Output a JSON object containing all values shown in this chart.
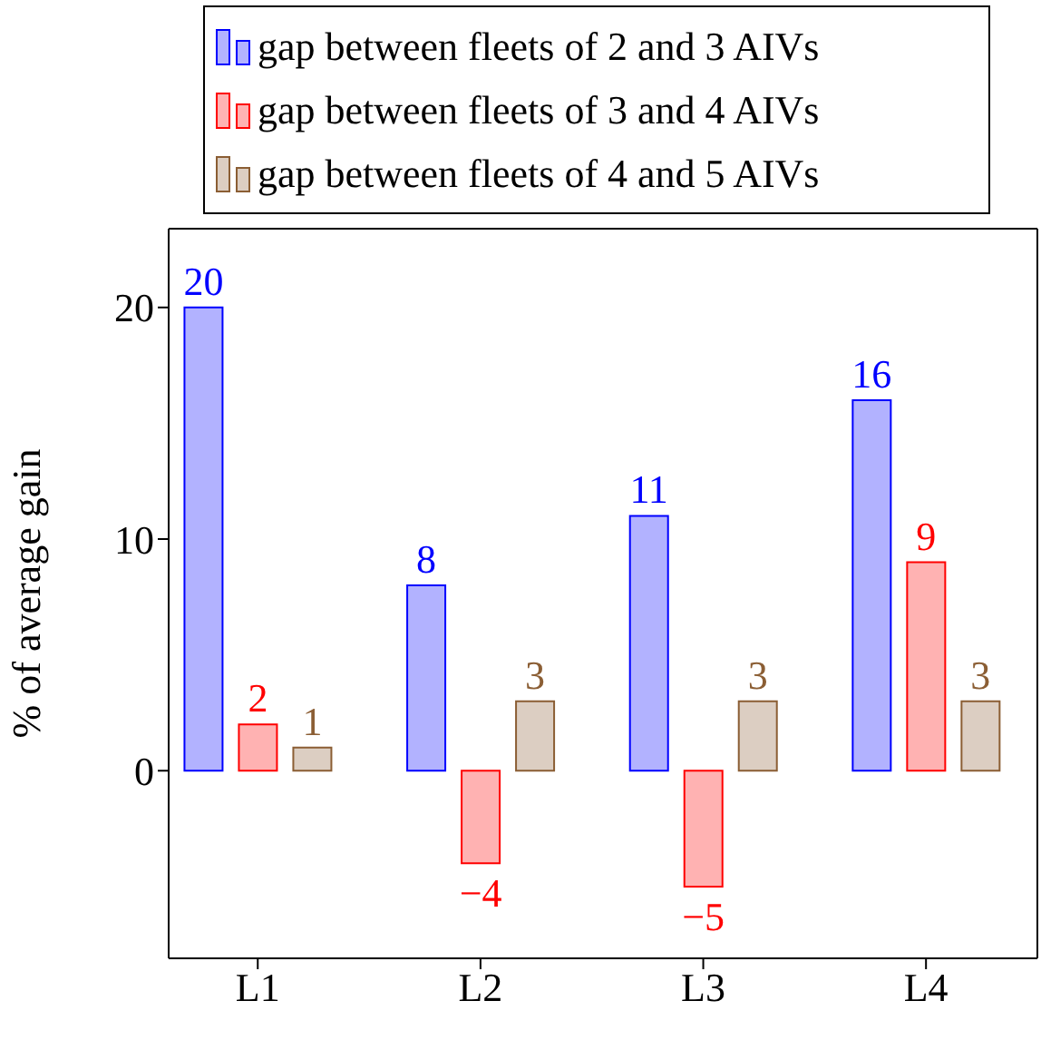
{
  "chart_data": {
    "type": "bar",
    "ylabel": "% of average gain",
    "categories": [
      "L1",
      "L2",
      "L3",
      "L4"
    ],
    "series": [
      {
        "name": "gap between fleets of 2 and 3 AIVs",
        "color": "#0000ff",
        "values": [
          20,
          8,
          11,
          16
        ]
      },
      {
        "name": "gap between fleets of 3 and 4 AIVs",
        "color": "#ff0000",
        "values": [
          2,
          -4,
          -5,
          9
        ]
      },
      {
        "name": "gap between fleets of 4 and 5 AIVs",
        "color": "#8b5e34",
        "values": [
          1,
          3,
          3,
          3
        ]
      }
    ],
    "ylim": [
      -8.1,
      23.4
    ],
    "yticks": [
      0,
      10,
      20
    ],
    "legend": "top",
    "data_labels": true
  }
}
